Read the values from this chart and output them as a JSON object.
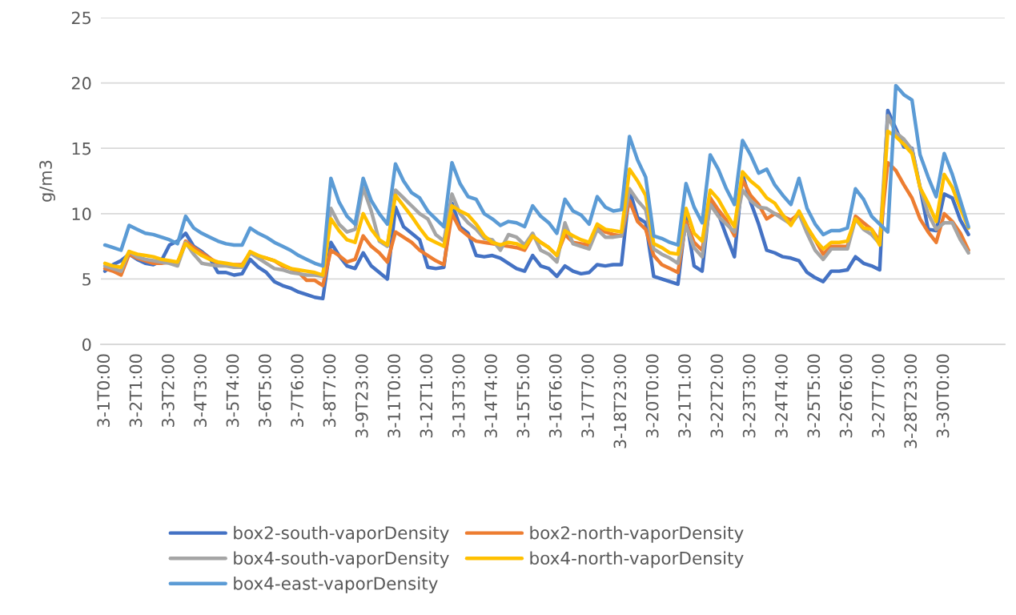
{
  "chart_data": {
    "type": "line",
    "ylabel": "g/m3",
    "ylim": [
      0,
      25
    ],
    "yticks": [
      0,
      5,
      10,
      15,
      20,
      25
    ],
    "grid": "y",
    "legend": "bottom",
    "line_style": "solid",
    "categories": [
      "3-1T0:00",
      null,
      null,
      null,
      "3-2T1:00",
      null,
      null,
      null,
      "3-3T2:00",
      null,
      null,
      null,
      "3-4T3:00",
      null,
      null,
      null,
      "3-5T4:00",
      null,
      null,
      null,
      "3-6T5:00",
      null,
      null,
      null,
      "3-7T6:00",
      null,
      null,
      null,
      "3-8T7:00",
      null,
      null,
      null,
      "3-9T23:00",
      null,
      null,
      null,
      "3-11T0:00",
      null,
      null,
      null,
      "3-12T1:00",
      null,
      null,
      null,
      "3-13T3:00",
      null,
      null,
      null,
      "3-14T4:00",
      null,
      null,
      null,
      "3-15T5:00",
      null,
      null,
      null,
      "3-16T6:00",
      null,
      null,
      null,
      "3-17T7:00",
      null,
      null,
      null,
      "3-18T23:00",
      null,
      null,
      null,
      "3-20T0:00",
      null,
      null,
      null,
      "3-21T1:00",
      null,
      null,
      null,
      "3-22T2:00",
      null,
      null,
      null,
      "3-23T3:00",
      null,
      null,
      null,
      "3-24T4:00",
      null,
      null,
      null,
      "3-25T5:00",
      null,
      null,
      null,
      "3-26T6:00",
      null,
      null,
      null,
      "3-27T7:00",
      null,
      null,
      null,
      "3-28T23:00",
      null,
      null,
      null,
      "3-30T0:00",
      null,
      null,
      null,
      null,
      null,
      null,
      null
    ],
    "series": [
      {
        "name": "box2-south-vaporDensity",
        "color": "#4472c4",
        "values": [
          5.6,
          6.1,
          6.4,
          6.9,
          6.5,
          6.2,
          6.1,
          6.4,
          7.6,
          7.9,
          8.5,
          7.5,
          7.1,
          6.6,
          5.5,
          5.5,
          5.3,
          5.4,
          6.5,
          5.9,
          5.5,
          4.8,
          4.5,
          4.3,
          4.0,
          3.8,
          3.6,
          3.5,
          7.8,
          6.8,
          6.0,
          5.8,
          7.0,
          6.0,
          5.5,
          5.0,
          10.5,
          9.0,
          8.5,
          8.0,
          5.9,
          5.8,
          5.9,
          10.8,
          9.0,
          8.5,
          6.8,
          6.7,
          6.8,
          6.6,
          6.2,
          5.8,
          5.6,
          6.8,
          6.0,
          5.8,
          5.2,
          6.0,
          5.6,
          5.4,
          5.5,
          6.1,
          6.0,
          6.1,
          6.1,
          11.8,
          9.7,
          9.3,
          5.2,
          5.0,
          4.8,
          4.6,
          9.8,
          6.0,
          5.6,
          11.2,
          10.0,
          8.3,
          6.7,
          13.0,
          10.9,
          9.2,
          7.2,
          7.0,
          6.7,
          6.6,
          6.4,
          5.5,
          5.1,
          4.8,
          5.6,
          5.6,
          5.7,
          6.7,
          6.2,
          6.0,
          5.7,
          17.9,
          16.5,
          15.1,
          15.0,
          12.0,
          8.8,
          8.7,
          11.5,
          11.2,
          9.5,
          8.4,
          null,
          null,
          null,
          null
        ]
      },
      {
        "name": "box2-north-vaporDensity",
        "color": "#ed7d31",
        "values": [
          5.8,
          5.6,
          5.3,
          6.9,
          6.6,
          6.4,
          6.2,
          6.2,
          6.3,
          6.2,
          7.9,
          7.4,
          7.0,
          6.6,
          6.2,
          6.1,
          6.1,
          6.1,
          7.0,
          6.7,
          6.6,
          6.4,
          6.0,
          5.8,
          5.5,
          4.9,
          4.9,
          4.5,
          7.2,
          6.8,
          6.3,
          6.5,
          8.3,
          7.5,
          7.0,
          6.3,
          8.6,
          8.2,
          7.8,
          7.2,
          6.8,
          6.4,
          6.1,
          10.0,
          8.8,
          8.3,
          7.9,
          7.8,
          7.7,
          7.6,
          7.5,
          7.4,
          7.2,
          8.3,
          7.8,
          7.4,
          6.8,
          8.4,
          7.8,
          7.7,
          7.6,
          9.1,
          8.6,
          8.4,
          8.3,
          11.0,
          9.4,
          8.8,
          6.8,
          6.1,
          5.8,
          5.5,
          9.4,
          7.8,
          7.2,
          11.2,
          10.3,
          9.5,
          8.3,
          12.6,
          11.4,
          10.7,
          9.6,
          10.0,
          9.8,
          9.5,
          10.0,
          8.9,
          8.0,
          6.9,
          7.5,
          7.5,
          7.5,
          9.8,
          9.3,
          8.8,
          7.9,
          13.9,
          13.3,
          12.2,
          11.2,
          9.6,
          8.6,
          7.8,
          10.0,
          9.4,
          8.5,
          7.2,
          null,
          null,
          null,
          null
        ]
      },
      {
        "name": "box4-south-vaporDensity",
        "color": "#a5a5a5",
        "values": [
          6.0,
          5.8,
          5.6,
          7.1,
          6.7,
          6.5,
          6.4,
          6.3,
          6.2,
          6.0,
          7.8,
          6.9,
          6.2,
          6.1,
          6.0,
          6.0,
          5.9,
          5.9,
          7.0,
          6.6,
          6.2,
          5.8,
          5.7,
          5.5,
          5.4,
          5.3,
          5.3,
          5.2,
          10.4,
          9.2,
          8.6,
          8.8,
          12.0,
          10.2,
          7.9,
          7.5,
          11.8,
          11.2,
          10.6,
          10.0,
          9.6,
          8.4,
          7.9,
          11.5,
          10.0,
          9.3,
          8.8,
          8.1,
          8.0,
          7.2,
          8.4,
          8.2,
          7.6,
          8.5,
          7.2,
          6.9,
          6.3,
          9.3,
          7.7,
          7.5,
          7.3,
          8.8,
          8.2,
          8.2,
          8.3,
          11.9,
          11.0,
          10.3,
          7.3,
          6.9,
          6.6,
          6.2,
          9.1,
          7.4,
          6.7,
          10.7,
          9.8,
          9.2,
          8.6,
          11.8,
          11.0,
          10.5,
          10.4,
          10.0,
          9.6,
          9.2,
          10.0,
          8.5,
          7.2,
          6.5,
          7.3,
          7.3,
          7.3,
          9.6,
          8.8,
          8.4,
          7.7,
          17.5,
          16.2,
          15.7,
          14.9,
          12.0,
          10.0,
          8.8,
          9.3,
          9.3,
          8.0,
          7.0,
          null,
          null,
          null,
          null
        ]
      },
      {
        "name": "box4-north-vaporDensity",
        "color": "#ffc000",
        "values": [
          6.2,
          6.0,
          5.9,
          7.1,
          6.9,
          6.8,
          6.7,
          6.5,
          6.4,
          6.3,
          7.7,
          7.2,
          6.8,
          6.5,
          6.3,
          6.2,
          6.1,
          6.0,
          7.1,
          6.8,
          6.6,
          6.4,
          6.1,
          5.8,
          5.7,
          5.6,
          5.5,
          5.3,
          9.6,
          8.7,
          8.0,
          7.8,
          10.0,
          8.8,
          8.0,
          7.6,
          11.4,
          10.6,
          9.8,
          8.9,
          8.1,
          7.8,
          7.5,
          10.6,
          10.2,
          9.9,
          9.2,
          8.3,
          7.8,
          7.6,
          7.8,
          7.7,
          7.4,
          8.3,
          7.8,
          7.4,
          6.8,
          8.7,
          8.3,
          8.0,
          7.8,
          9.2,
          8.8,
          8.7,
          8.6,
          13.4,
          12.5,
          11.4,
          7.7,
          7.4,
          7.0,
          6.9,
          10.4,
          8.5,
          7.9,
          11.8,
          11.1,
          10.0,
          9.0,
          13.2,
          12.5,
          12.0,
          11.2,
          10.8,
          9.9,
          9.1,
          10.2,
          9.0,
          8.0,
          7.3,
          7.8,
          7.8,
          7.9,
          9.6,
          8.9,
          8.8,
          7.6,
          16.3,
          15.9,
          15.3,
          14.6,
          12.0,
          10.8,
          9.4,
          13.0,
          12.0,
          10.4,
          8.9,
          null,
          null,
          null,
          null
        ]
      },
      {
        "name": "box4-east-vaporDensity",
        "color": "#5b9bd5",
        "values": [
          7.6,
          7.4,
          7.2,
          9.1,
          8.8,
          8.5,
          8.4,
          8.2,
          8.0,
          7.7,
          9.8,
          8.9,
          8.5,
          8.2,
          7.9,
          7.7,
          7.6,
          7.6,
          8.9,
          8.5,
          8.2,
          7.8,
          7.5,
          7.2,
          6.8,
          6.5,
          6.2,
          6.0,
          12.7,
          10.9,
          9.8,
          9.2,
          12.7,
          11.0,
          10.0,
          9.2,
          13.8,
          12.5,
          11.6,
          11.2,
          10.2,
          9.6,
          9.0,
          13.9,
          12.3,
          11.3,
          11.1,
          10.0,
          9.6,
          9.1,
          9.4,
          9.3,
          9.0,
          10.6,
          9.8,
          9.3,
          8.5,
          11.1,
          10.2,
          9.9,
          9.2,
          11.3,
          10.5,
          10.2,
          10.3,
          15.9,
          14.1,
          12.8,
          8.3,
          8.1,
          7.8,
          7.6,
          12.3,
          10.5,
          9.3,
          14.5,
          13.4,
          11.9,
          10.7,
          15.6,
          14.5,
          13.1,
          13.4,
          12.2,
          11.4,
          10.7,
          12.7,
          10.4,
          9.2,
          8.4,
          8.7,
          8.7,
          8.9,
          11.9,
          11.1,
          9.8,
          9.2,
          8.6,
          19.8,
          19.1,
          18.7,
          14.5,
          12.8,
          11.3,
          14.6,
          13.0,
          11.0,
          9.0,
          null,
          null,
          null,
          null
        ]
      }
    ]
  }
}
